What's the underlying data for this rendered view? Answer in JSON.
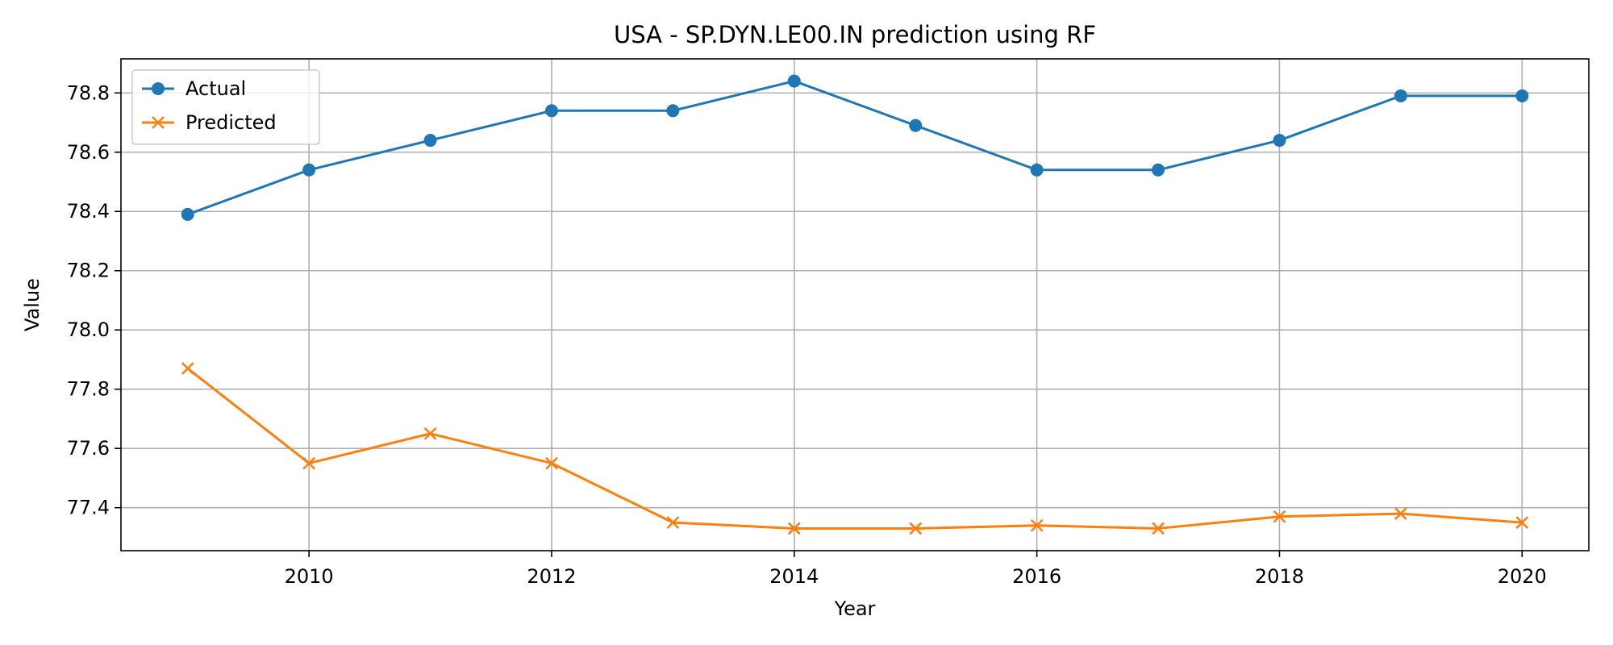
{
  "chart_data": {
    "type": "line",
    "title": "USA - SP.DYN.LE00.IN prediction using RF",
    "xlabel": "Year",
    "ylabel": "Value",
    "x": [
      2009,
      2010,
      2011,
      2012,
      2013,
      2014,
      2015,
      2016,
      2017,
      2018,
      2019,
      2020
    ],
    "xlim": [
      2008.45,
      2020.55
    ],
    "ylim": [
      77.255,
      78.915
    ],
    "xticks": [
      2010,
      2012,
      2014,
      2016,
      2018,
      2020
    ],
    "yticks": [
      77.4,
      77.6,
      77.8,
      78.0,
      78.2,
      78.4,
      78.6,
      78.8
    ],
    "ytick_labels": [
      "77.4",
      "77.6",
      "77.8",
      "78.0",
      "78.2",
      "78.4",
      "78.6",
      "78.8"
    ],
    "grid": true,
    "legend_position": "upper-left",
    "series": [
      {
        "name": "Actual",
        "color": "#1f77b4",
        "marker": "circle",
        "values": [
          78.39,
          78.54,
          78.64,
          78.74,
          78.74,
          78.84,
          78.69,
          78.54,
          78.54,
          78.64,
          78.79,
          78.79
        ]
      },
      {
        "name": "Predicted",
        "color": "#ff7f0e",
        "marker": "x",
        "values": [
          77.87,
          77.55,
          77.65,
          77.55,
          77.35,
          77.33,
          77.33,
          77.34,
          77.33,
          77.37,
          77.38,
          77.35
        ]
      }
    ]
  }
}
